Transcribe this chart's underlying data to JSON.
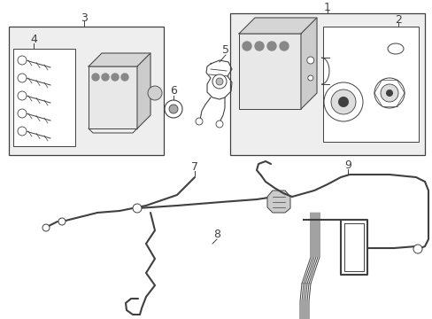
{
  "background_color": "#ffffff",
  "line_color": "#404040",
  "box_fill_light": "#eeeeee",
  "box_fill_white": "#ffffff",
  "label_fontsize": 9
}
